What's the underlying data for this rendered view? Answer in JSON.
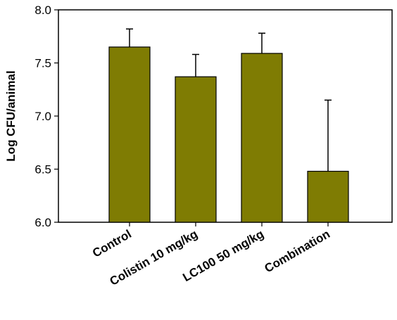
{
  "chart_data": {
    "type": "bar",
    "categories": [
      "Control",
      "Colistin 10 mg/kg",
      "LC100 50 mg/kg",
      "Combination"
    ],
    "values": [
      7.65,
      7.37,
      7.59,
      6.48
    ],
    "error_plus": [
      0.17,
      0.21,
      0.19,
      0.67
    ],
    "error_bars": "positive only",
    "title": "",
    "xlabel": "",
    "ylabel": "Log CFU/animal",
    "ylim": [
      6.0,
      8.0
    ],
    "yticks": [
      6.0,
      6.5,
      7.0,
      7.5,
      8.0
    ],
    "ytick_labels": [
      "6.0",
      "6.5",
      "7.0",
      "7.5",
      "8.0"
    ],
    "grid": false,
    "legend": "none",
    "bar_color": "#7f7c03",
    "bar_edge_color": "#000000"
  }
}
